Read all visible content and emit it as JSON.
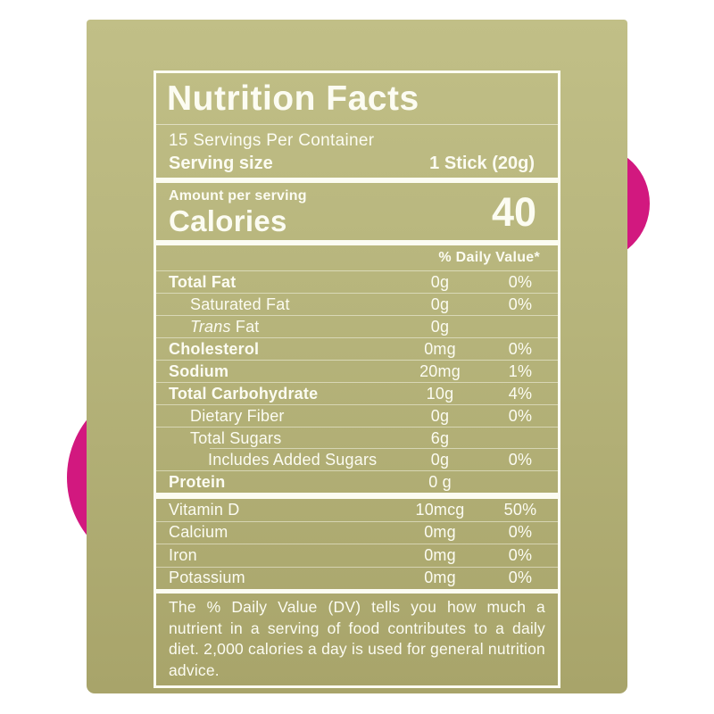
{
  "colors": {
    "package_top": "#c1bf87",
    "package_bottom": "#a8a46a",
    "pink": "#d2187f",
    "label_white": "#fcfcf2"
  },
  "label": {
    "title": "Nutrition Facts",
    "servings_per_container": "15 Servings Per Container",
    "serving_size_label": "Serving size",
    "serving_size_value": "1 Stick (20g)",
    "amount_per_serving_label": "Amount per serving",
    "calories_label": "Calories",
    "calories_value": "40",
    "daily_value_header": "% Daily Value*",
    "nutrients": [
      {
        "name": "Total Fat",
        "amount": "0g",
        "dv": "0%",
        "bold": true,
        "indent": 0
      },
      {
        "name": "Saturated Fat",
        "amount": "0g",
        "dv": "0%",
        "bold": false,
        "indent": 1
      },
      {
        "name": "Trans Fat",
        "amount": "0g",
        "dv": "",
        "bold": false,
        "indent": 1,
        "italic_first": true
      },
      {
        "name": "Cholesterol",
        "amount": "0mg",
        "dv": "0%",
        "bold": true,
        "indent": 0
      },
      {
        "name": "Sodium",
        "amount": "20mg",
        "dv": "1%",
        "bold": true,
        "indent": 0
      },
      {
        "name": "Total Carbohydrate",
        "amount": "10g",
        "dv": "4%",
        "bold": true,
        "indent": 0
      },
      {
        "name": "Dietary Fiber",
        "amount": "0g",
        "dv": "0%",
        "bold": false,
        "indent": 1
      },
      {
        "name": "Total Sugars",
        "amount": "6g",
        "dv": "",
        "bold": false,
        "indent": 1
      },
      {
        "name": "Includes Added Sugars",
        "amount": "0g",
        "dv": "0%",
        "bold": false,
        "indent": 2,
        "indent_rule": true
      },
      {
        "name": "Protein",
        "amount": "0 g",
        "dv": "",
        "bold": true,
        "indent": 0
      }
    ],
    "vitamins": [
      {
        "name": "Vitamin D",
        "amount": "10mcg",
        "dv": "50%"
      },
      {
        "name": "Calcium",
        "amount": "0mg",
        "dv": "0%"
      },
      {
        "name": "Iron",
        "amount": "0mg",
        "dv": "0%"
      },
      {
        "name": "Potassium",
        "amount": "0mg",
        "dv": "0%"
      }
    ],
    "footnote": "The % Daily Value (DV) tells you how much a nutrient in a serving of food contributes to a daily diet. 2,000 calories a day is used for general nutrition advice."
  }
}
